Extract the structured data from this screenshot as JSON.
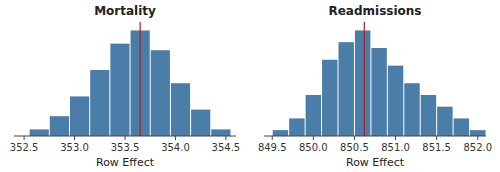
{
  "chart_data": [
    {
      "type": "histogram",
      "title": "Mortality",
      "x_label": "Row Effect",
      "bins": [
        352.55,
        352.75,
        352.95,
        353.15,
        353.35,
        353.55,
        353.75,
        353.95,
        354.15,
        354.35,
        354.55
      ],
      "values": [
        1,
        3,
        6,
        10,
        14,
        16,
        13,
        8,
        4,
        1
      ],
      "color": "#4a7da8",
      "xlim": [
        352.4,
        354.6
      ],
      "xticks": [
        352.5,
        {
          "value": 353,
          "label": "353.0"
        },
        353.5,
        {
          "value": 354,
          "label": "354.0"
        },
        354.5
      ],
      "ylim": [
        0,
        17.28
      ],
      "tick_labels": "x",
      "reference_line": {
        "x": 353.65,
        "color": "#aa2222"
      }
    },
    {
      "type": "histogram",
      "title": "Readmissions",
      "x_label": "Row Effect",
      "bins": [
        849.5,
        849.7,
        849.9,
        850.1,
        850.3,
        850.5,
        850.7,
        850.9,
        851.1,
        851.3,
        851.5,
        851.7,
        851.9,
        852.1
      ],
      "values": [
        1,
        3,
        7,
        13,
        16,
        18,
        15,
        12,
        9,
        7,
        5,
        3,
        1
      ],
      "color": "#4a7da8",
      "xlim": [
        849.4,
        852.1
      ],
      "xticks": [
        849.5,
        {
          "value": 850,
          "label": "850.0"
        },
        850.5,
        {
          "value": 851,
          "label": "851.0"
        },
        851.5,
        {
          "value": 852,
          "label": "852.0"
        }
      ],
      "ylim": [
        0,
        19.44
      ],
      "tick_labels": "x",
      "reference_line": {
        "x": 850.62,
        "color": "#aa2222"
      }
    }
  ]
}
